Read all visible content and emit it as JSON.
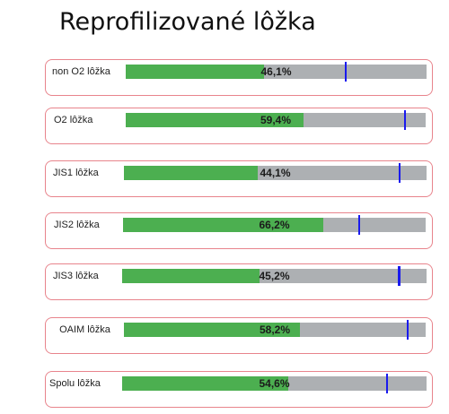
{
  "title": "Reprofilizované lôžka",
  "colors": {
    "fill": "#4caf50",
    "track": "#adb0b3",
    "target": "#1a1aee",
    "border": "#e8848c"
  },
  "chart_data": {
    "type": "bar",
    "orientation": "horizontal",
    "title": "Reprofilizované lôžka",
    "xlim": [
      0,
      100
    ],
    "unit": "%",
    "categories": [
      "non O2 lôžka",
      "O2 lôžka",
      "JIS1 lôžka",
      "JIS2 lôžka",
      "JIS3 lôžka",
      "OAIM lôžka",
      "Spolu lôžka"
    ],
    "values": [
      46.1,
      59.4,
      44.1,
      66.2,
      45.2,
      58.2,
      54.6
    ],
    "value_labels": [
      "46,1%",
      "59,4%",
      "44,1%",
      "66,2%",
      "45,2%",
      "58,2%",
      "54,6%"
    ],
    "targets": [
      73,
      93,
      91,
      78,
      91,
      94,
      87
    ]
  }
}
